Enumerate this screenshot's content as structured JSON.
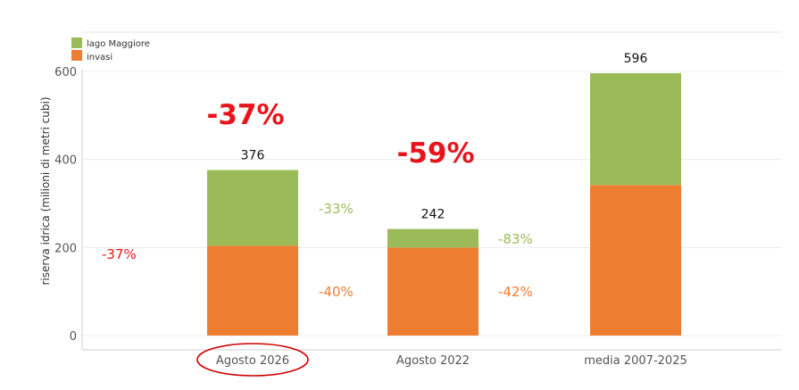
{
  "chart_data": {
    "type": "bar",
    "stacked": true,
    "categories": [
      "Agosto 2026",
      "Agosto 2022",
      "media 2007-2025"
    ],
    "series": [
      {
        "name": "invasi",
        "color": "#ed7d31",
        "values": [
          204,
          200,
          342
        ]
      },
      {
        "name": "lago Maggiore",
        "color": "#9bbb59",
        "values": [
          172,
          42,
          254
        ]
      }
    ],
    "totals": [
      "376",
      "242",
      "596"
    ],
    "ylabel": "riserva idrica (milioni di metri cubi)",
    "ylim": [
      0,
      600
    ],
    "yticks": [
      0,
      200,
      400,
      600
    ],
    "grid": true,
    "legend_position": "top-left",
    "highlighted_category": "Agosto 2026",
    "highlight_color": "#cc0000",
    "annotations": {
      "left_change": "-37%",
      "big_changes": [
        "-37%",
        "-59%"
      ],
      "lago_changes": [
        "-33%",
        "-83%"
      ],
      "invasi_changes": [
        "-40%",
        "-42%"
      ]
    },
    "colors": {
      "red": "#e8141b",
      "green": "#9bbb59",
      "orange": "#ed7d31"
    }
  }
}
